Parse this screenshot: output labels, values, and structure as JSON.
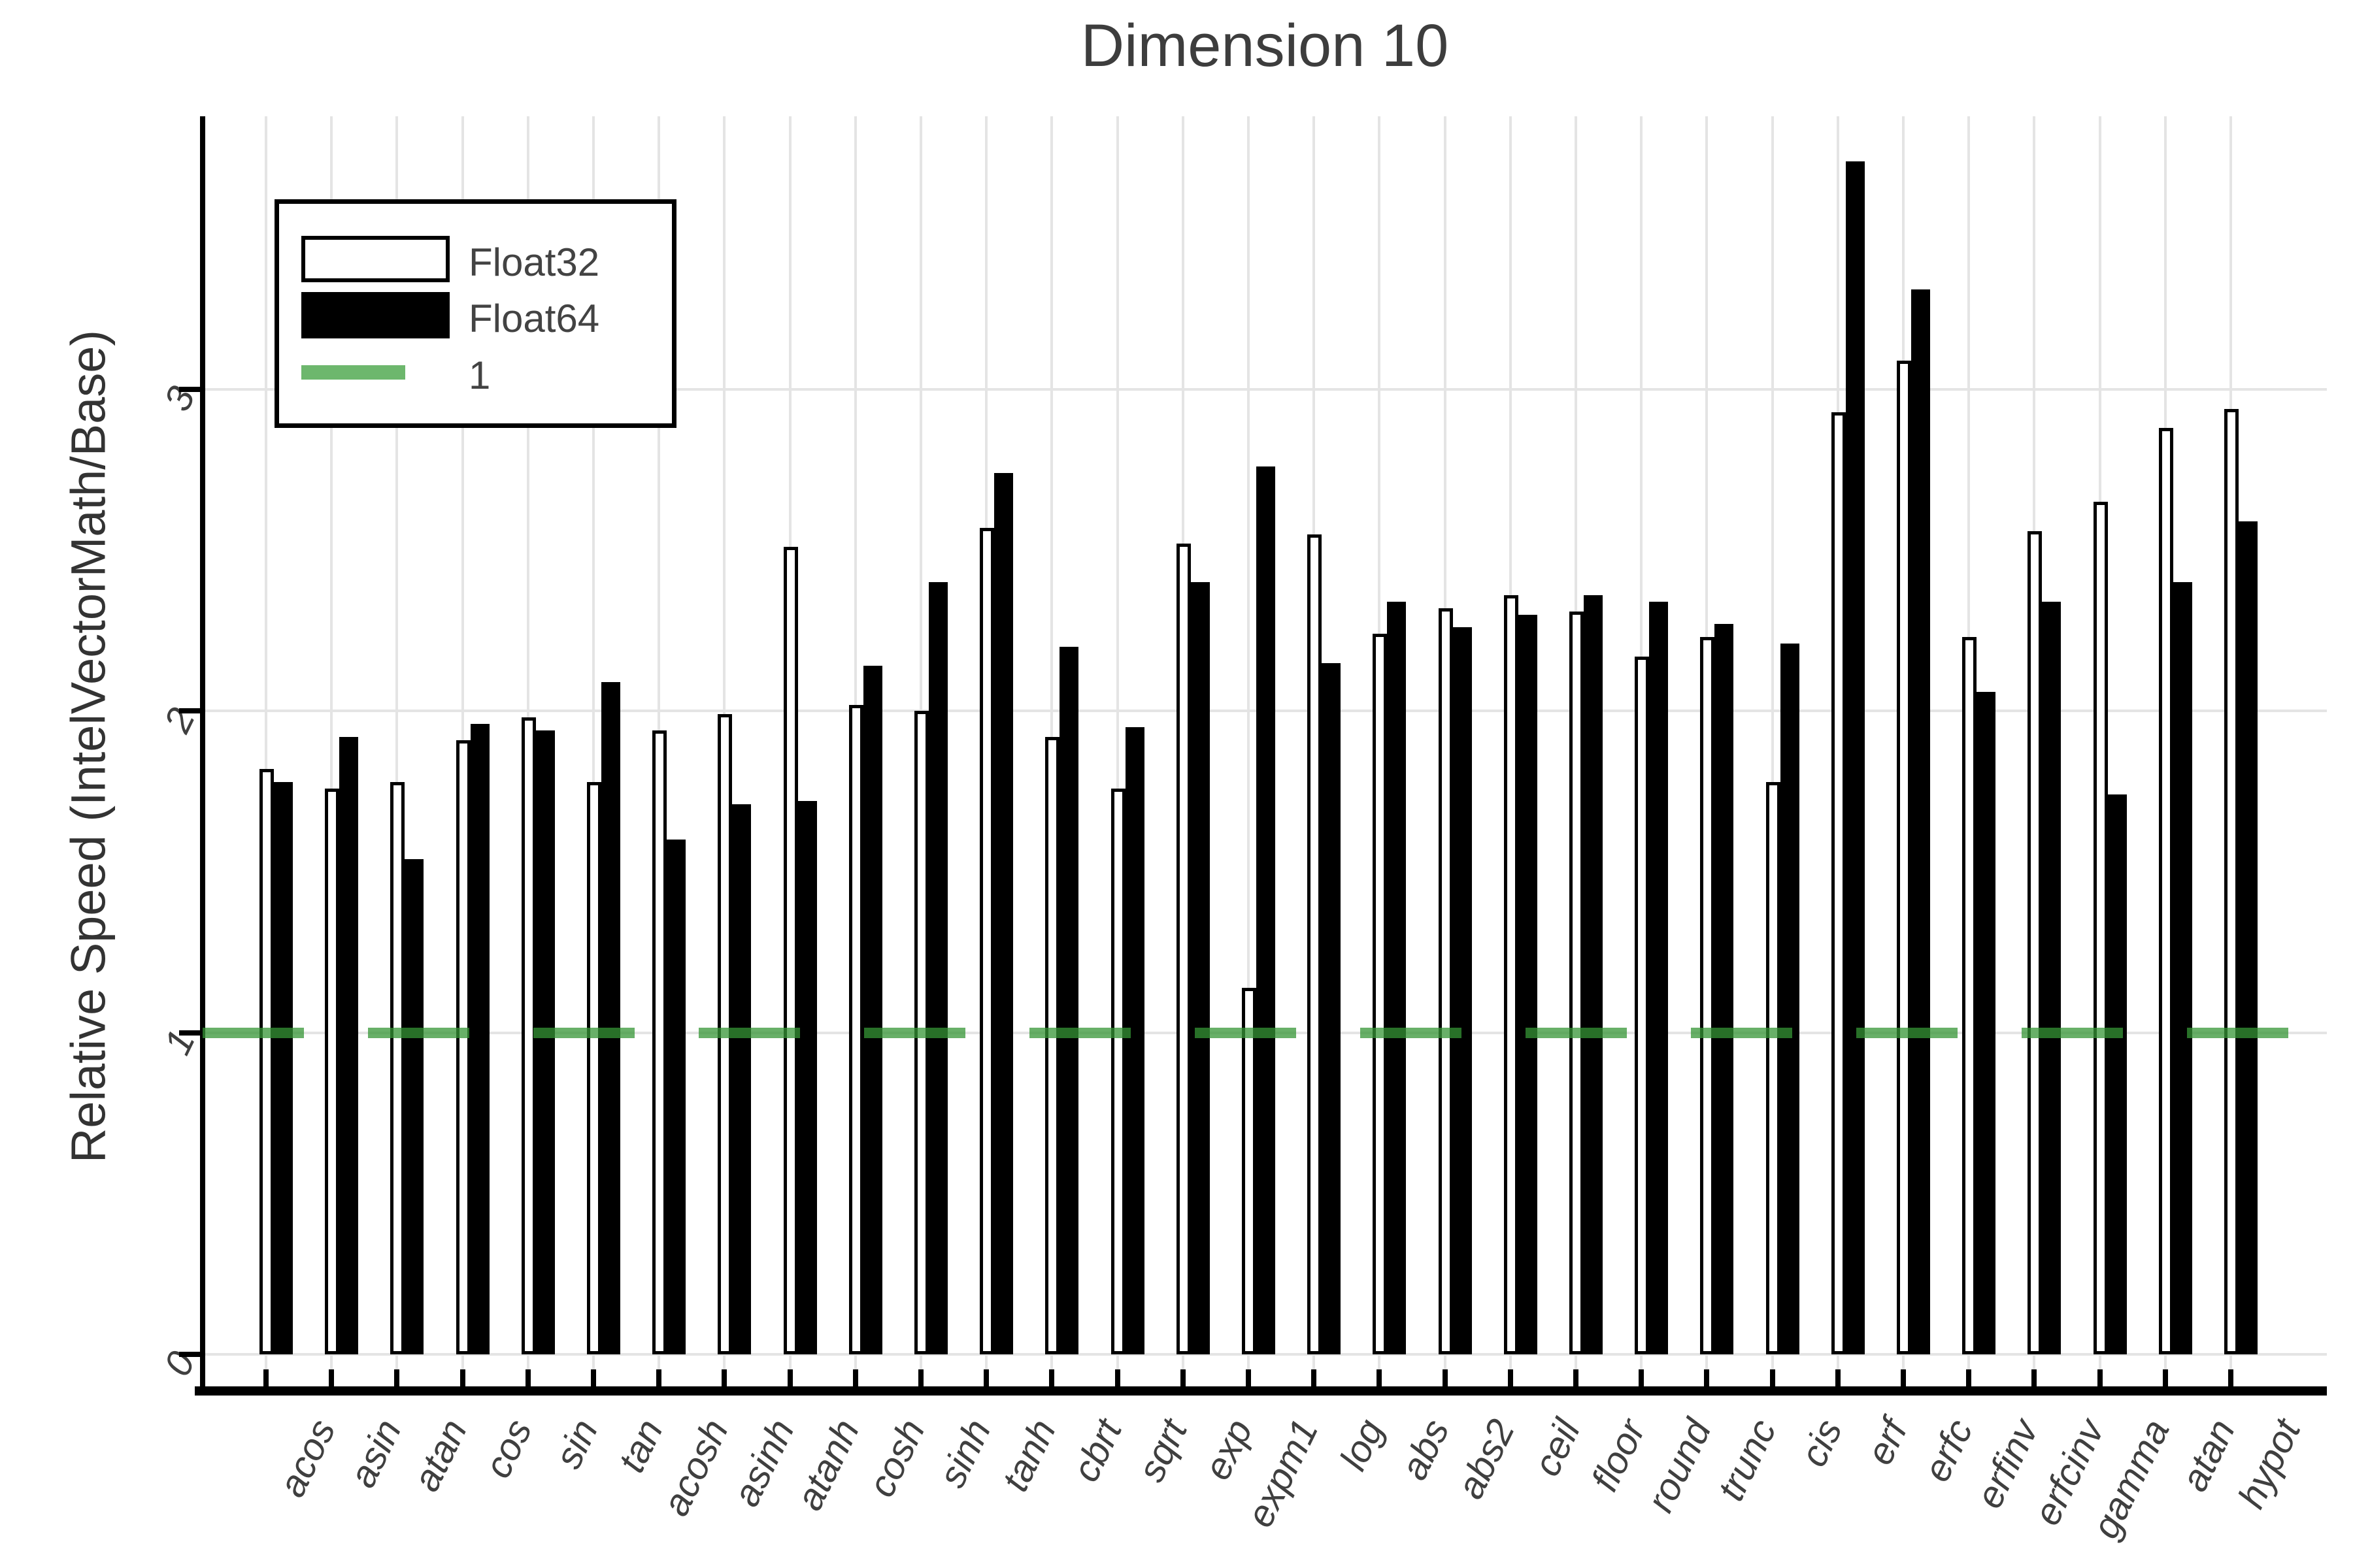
{
  "chart_data": {
    "type": "bar",
    "title": "Dimension 10",
    "ylabel": "Relative Speed (IntelVectorMath/Base)",
    "xlabel": "",
    "categories": [
      "acos",
      "asin",
      "atan",
      "cos",
      "sin",
      "tan",
      "acosh",
      "asinh",
      "atanh",
      "cosh",
      "sinh",
      "tanh",
      "cbrt",
      "sqrt",
      "exp",
      "expm1",
      "log",
      "abs",
      "abs2",
      "ceil",
      "floor",
      "round",
      "trunc",
      "cis",
      "erf",
      "erfc",
      "erfinv",
      "erfcinv",
      "gamma",
      "atan",
      "hypot"
    ],
    "series": [
      {
        "name": "Float32",
        "color": "#ffffff",
        "outline": "#000000",
        "values": [
          1.82,
          1.76,
          1.78,
          1.91,
          1.98,
          1.78,
          1.94,
          1.99,
          2.51,
          2.02,
          2.0,
          2.57,
          1.92,
          1.76,
          2.52,
          1.14,
          2.55,
          2.24,
          2.32,
          2.36,
          2.31,
          2.17,
          2.23,
          1.78,
          2.93,
          3.09,
          2.23,
          2.56,
          2.65,
          2.88,
          2.94
        ]
      },
      {
        "name": "Float64",
        "color": "#000000",
        "outline": "#000000",
        "values": [
          1.78,
          1.92,
          1.54,
          1.96,
          1.94,
          2.09,
          1.6,
          1.71,
          1.72,
          2.14,
          2.4,
          2.74,
          2.2,
          1.95,
          2.4,
          2.76,
          2.15,
          2.34,
          2.26,
          2.3,
          2.36,
          2.34,
          2.27,
          2.21,
          3.71,
          3.31,
          2.06,
          2.34,
          1.74,
          2.4,
          2.59
        ]
      }
    ],
    "reference_line": {
      "label": "1",
      "value": 1,
      "color": "#369636",
      "opacity": 0.75,
      "style": "dashed"
    },
    "yticks": [
      0,
      1,
      2,
      3
    ],
    "ylim": [
      0,
      3.87
    ],
    "grid": true,
    "legend_position": "top-left",
    "legend_entries": [
      "Float32",
      "Float64",
      "1"
    ],
    "text_color": "#3d3d3d"
  }
}
